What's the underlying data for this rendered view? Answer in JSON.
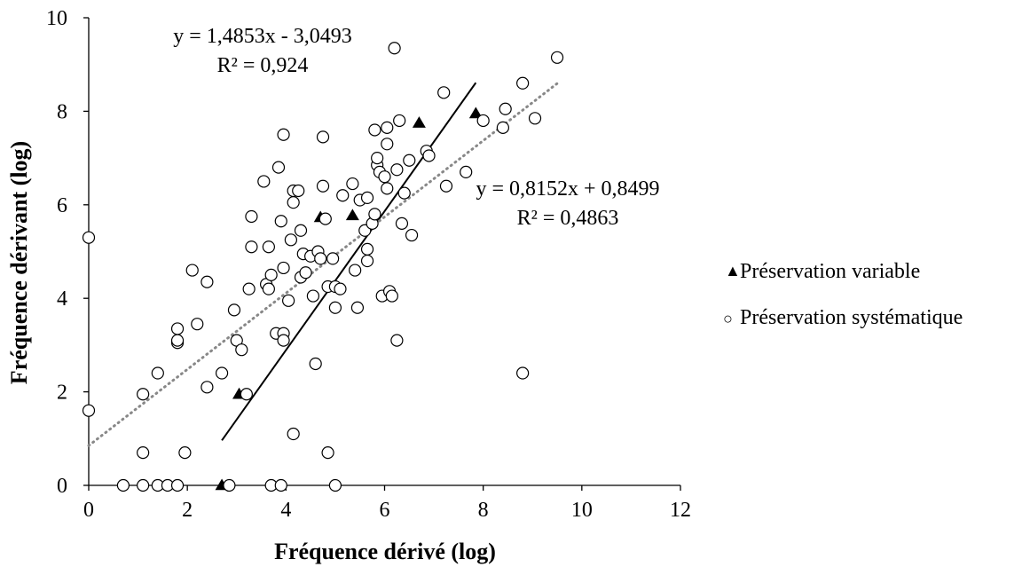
{
  "chart_data": {
    "type": "scatter",
    "title": "",
    "xlabel": "Fréquence dérivé (log)",
    "ylabel": "Fréquence dérivant (log)",
    "xlim": [
      0,
      12
    ],
    "ylim": [
      0,
      10
    ],
    "xticks": [
      "0",
      "2",
      "4",
      "6",
      "8",
      "10",
      "12"
    ],
    "yticks": [
      "0",
      "2",
      "4",
      "6",
      "8",
      "10"
    ],
    "grid": false,
    "legend_position": "right",
    "series": [
      {
        "name": "Préservation variable",
        "marker": "filled-triangle",
        "color": "#000000",
        "points": [
          [
            2.7,
            0.0
          ],
          [
            3.05,
            1.95
          ],
          [
            4.7,
            5.73
          ],
          [
            5.35,
            5.77
          ],
          [
            6.7,
            7.75
          ],
          [
            7.85,
            7.95
          ]
        ]
      },
      {
        "name": "Préservation systématique",
        "marker": "open-circle",
        "color": "#000000",
        "points": [
          [
            0.0,
            5.3
          ],
          [
            0.0,
            1.6
          ],
          [
            0.7,
            0.0
          ],
          [
            1.1,
            0.0
          ],
          [
            1.4,
            0.0
          ],
          [
            1.6,
            0.0
          ],
          [
            1.8,
            0.0
          ],
          [
            1.1,
            0.7
          ],
          [
            1.1,
            1.95
          ],
          [
            1.4,
            2.4
          ],
          [
            1.8,
            3.05
          ],
          [
            1.8,
            3.1
          ],
          [
            1.8,
            3.35
          ],
          [
            1.95,
            0.7
          ],
          [
            2.1,
            4.6
          ],
          [
            2.2,
            3.45
          ],
          [
            2.4,
            4.35
          ],
          [
            2.4,
            2.1
          ],
          [
            2.7,
            2.4
          ],
          [
            2.85,
            0.0
          ],
          [
            2.95,
            3.75
          ],
          [
            3.0,
            3.1
          ],
          [
            3.1,
            2.9
          ],
          [
            3.2,
            1.95
          ],
          [
            3.25,
            4.2
          ],
          [
            3.3,
            5.1
          ],
          [
            3.3,
            5.75
          ],
          [
            3.55,
            6.5
          ],
          [
            3.6,
            4.3
          ],
          [
            3.65,
            4.2
          ],
          [
            3.65,
            5.1
          ],
          [
            3.7,
            4.5
          ],
          [
            3.7,
            0.0
          ],
          [
            3.8,
            3.25
          ],
          [
            3.85,
            6.8
          ],
          [
            3.9,
            5.65
          ],
          [
            3.9,
            0.0
          ],
          [
            3.95,
            7.5
          ],
          [
            3.95,
            3.25
          ],
          [
            3.95,
            3.1
          ],
          [
            3.95,
            4.65
          ],
          [
            4.05,
            3.95
          ],
          [
            4.1,
            5.25
          ],
          [
            4.15,
            6.3
          ],
          [
            4.15,
            6.05
          ],
          [
            4.15,
            1.1
          ],
          [
            4.25,
            6.3
          ],
          [
            4.3,
            4.45
          ],
          [
            4.3,
            5.45
          ],
          [
            4.35,
            4.95
          ],
          [
            4.4,
            4.55
          ],
          [
            4.5,
            4.9
          ],
          [
            4.55,
            4.05
          ],
          [
            4.6,
            2.6
          ],
          [
            4.65,
            5.0
          ],
          [
            4.7,
            4.85
          ],
          [
            4.75,
            7.45
          ],
          [
            4.75,
            6.4
          ],
          [
            4.8,
            5.7
          ],
          [
            4.85,
            4.25
          ],
          [
            4.85,
            0.7
          ],
          [
            4.95,
            4.85
          ],
          [
            5.0,
            4.25
          ],
          [
            5.0,
            3.8
          ],
          [
            5.0,
            0.0
          ],
          [
            5.1,
            4.2
          ],
          [
            5.15,
            6.2
          ],
          [
            5.35,
            6.45
          ],
          [
            5.4,
            4.6
          ],
          [
            5.45,
            3.8
          ],
          [
            5.5,
            6.1
          ],
          [
            5.6,
            5.45
          ],
          [
            5.65,
            6.15
          ],
          [
            5.65,
            5.05
          ],
          [
            5.65,
            4.8
          ],
          [
            5.75,
            5.6
          ],
          [
            5.8,
            7.6
          ],
          [
            5.8,
            5.8
          ],
          [
            5.85,
            6.85
          ],
          [
            5.85,
            7.0
          ],
          [
            5.9,
            6.7
          ],
          [
            5.95,
            4.05
          ],
          [
            6.0,
            6.6
          ],
          [
            6.05,
            7.3
          ],
          [
            6.05,
            7.65
          ],
          [
            6.05,
            6.35
          ],
          [
            6.1,
            4.15
          ],
          [
            6.15,
            4.05
          ],
          [
            6.2,
            9.35
          ],
          [
            6.25,
            3.1
          ],
          [
            6.25,
            6.75
          ],
          [
            6.3,
            7.8
          ],
          [
            6.35,
            5.6
          ],
          [
            6.4,
            6.25
          ],
          [
            6.5,
            6.95
          ],
          [
            6.55,
            5.35
          ],
          [
            6.85,
            7.15
          ],
          [
            6.9,
            7.05
          ],
          [
            7.2,
            8.4
          ],
          [
            7.25,
            6.4
          ],
          [
            7.65,
            6.7
          ],
          [
            8.0,
            7.8
          ],
          [
            8.4,
            7.65
          ],
          [
            8.45,
            8.05
          ],
          [
            8.8,
            8.6
          ],
          [
            8.8,
            2.4
          ],
          [
            9.05,
            7.85
          ],
          [
            9.5,
            9.15
          ]
        ]
      }
    ],
    "trendlines": [
      {
        "series": "Préservation variable",
        "style": "solid",
        "color": "#000000",
        "slope": 1.4853,
        "intercept": -3.0493,
        "x_range": [
          2.7,
          7.85
        ],
        "equation": "y = 1,4853x - 3,0493",
        "r2": "R² = 0,924"
      },
      {
        "series": "Préservation systématique",
        "style": "dotted",
        "color": "#888888",
        "slope": 0.8152,
        "intercept": 0.8499,
        "x_range": [
          0,
          9.5
        ],
        "equation": "y = 0,8152x + 0,8499",
        "r2": "R² = 0,4863"
      }
    ],
    "legend": [
      {
        "symbol": "▲",
        "label": "Préservation variable"
      },
      {
        "symbol": "○",
        "label": "Préservation systématique"
      }
    ]
  }
}
